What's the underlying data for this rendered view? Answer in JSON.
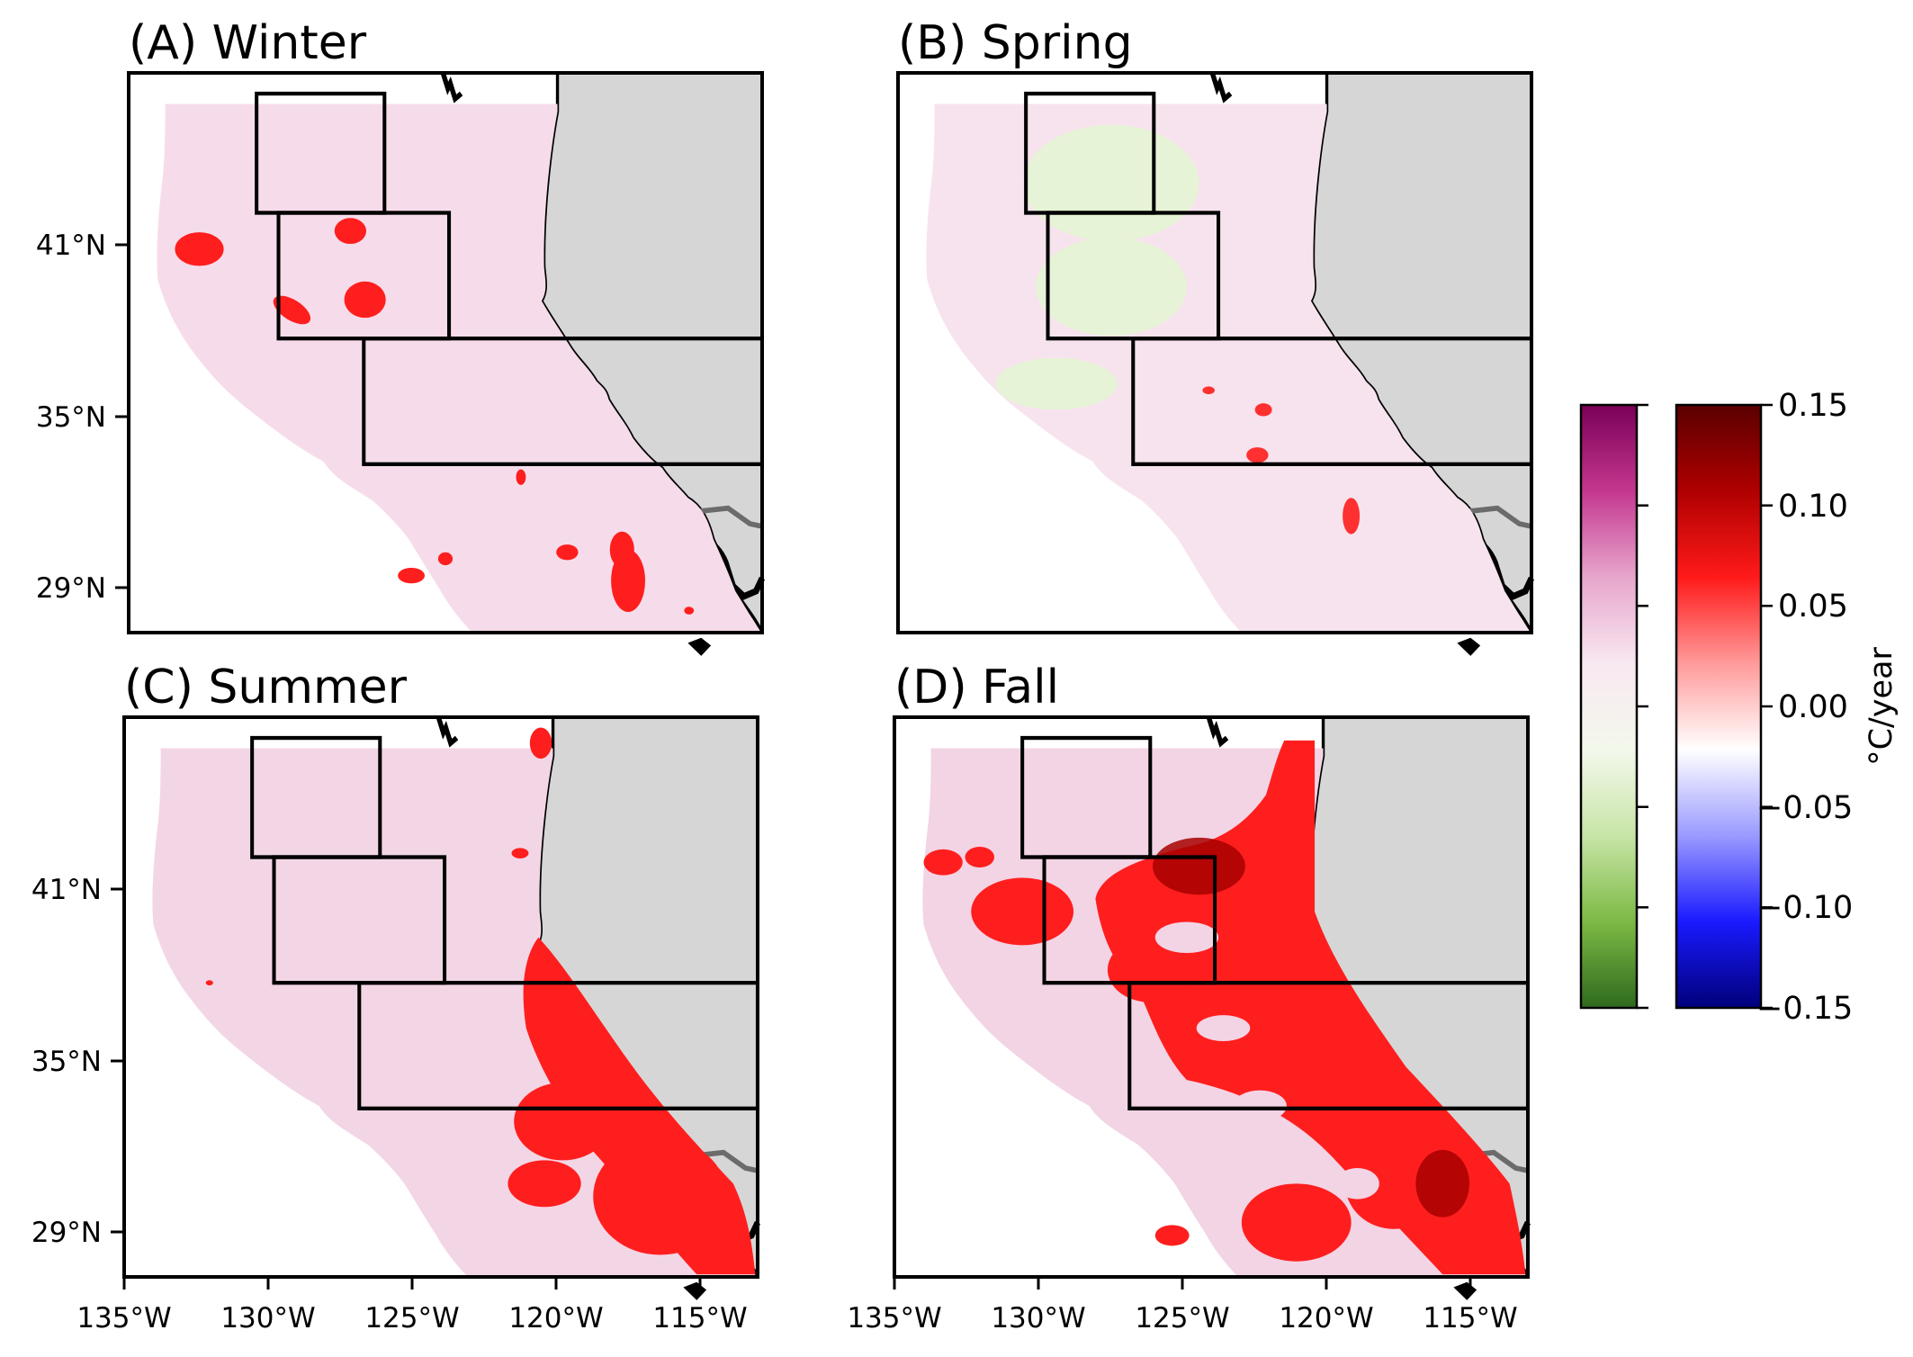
{
  "panels": [
    {
      "id": "A",
      "title": "(A) Winter"
    },
    {
      "id": "B",
      "title": "(B) Spring"
    },
    {
      "id": "C",
      "title": "(C) Summer"
    },
    {
      "id": "D",
      "title": "(D) Fall"
    }
  ],
  "axes": {
    "lon_ticks": [
      "135°W",
      "130°W",
      "125°W",
      "120°W",
      "115°W"
    ],
    "lat_ticks": [
      "41°N",
      "35°N",
      "29°N"
    ]
  },
  "colorbar": {
    "label": "°C/year",
    "ticks": [
      "0.15",
      "0.10",
      "0.05",
      "0.00",
      "−0.05",
      "−0.10",
      "−0.15"
    ],
    "range": [
      -0.15,
      0.15
    ],
    "left_cmap": [
      "#7a0057",
      "#c4378f",
      "#e7a6cc",
      "#f8e8f1",
      "#f3f8ec",
      "#c8e5a7",
      "#7cba45",
      "#2f6a1d"
    ],
    "right_cmap": [
      "#5a0000",
      "#b00000",
      "#ff1a1a",
      "#ff9a9a",
      "#ffffff",
      "#9a9aff",
      "#1a1aff",
      "#00007a"
    ]
  },
  "colors": {
    "land": "#d6d6d6",
    "ocean_base": "#f6dcea",
    "warm": "#ff1e1e",
    "cool": "#e7f3d6",
    "border": "#6b6b6b"
  }
}
